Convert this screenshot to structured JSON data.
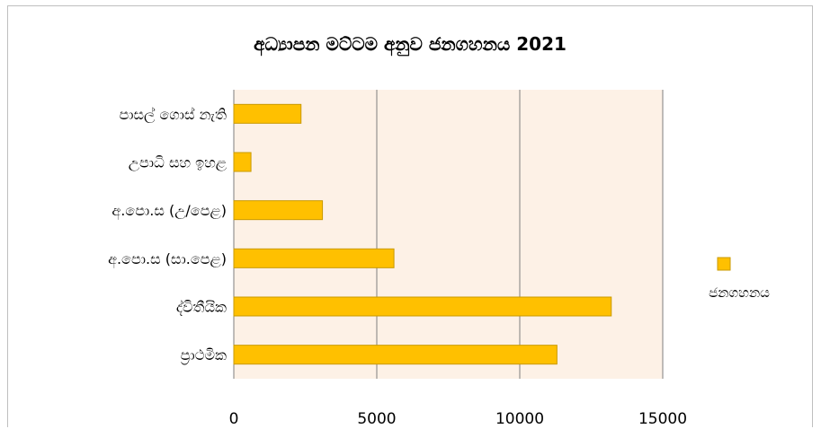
{
  "chart_data": {
    "type": "bar",
    "orientation": "horizontal",
    "title": "අධ්‍යාපන මට්ටම අනුව ජනගහනය 2021",
    "categories": [
      "පාසල් ගොස් නැති",
      "උපාධි සහ ඉහළ",
      "අ.පො.ස (උ/පෙළ)",
      "අ.පො.ස (සා.පෙළ)",
      "ද්විතීයික",
      "ප්‍රාථමික"
    ],
    "series": [
      {
        "name": "ජනගහනය",
        "values": [
          2350,
          600,
          3100,
          5600,
          13200,
          11300
        ]
      }
    ],
    "x_ticks": [
      "0",
      "5000",
      "10000",
      "15000"
    ],
    "xlim": [
      0,
      15000
    ],
    "grid": true,
    "legend_position": "right",
    "colors": {
      "bar_fill": "#ffc000",
      "bar_stroke": "#c99a00",
      "plot_background": "#fdf1e6",
      "gridline": "#7f7f7f"
    }
  }
}
